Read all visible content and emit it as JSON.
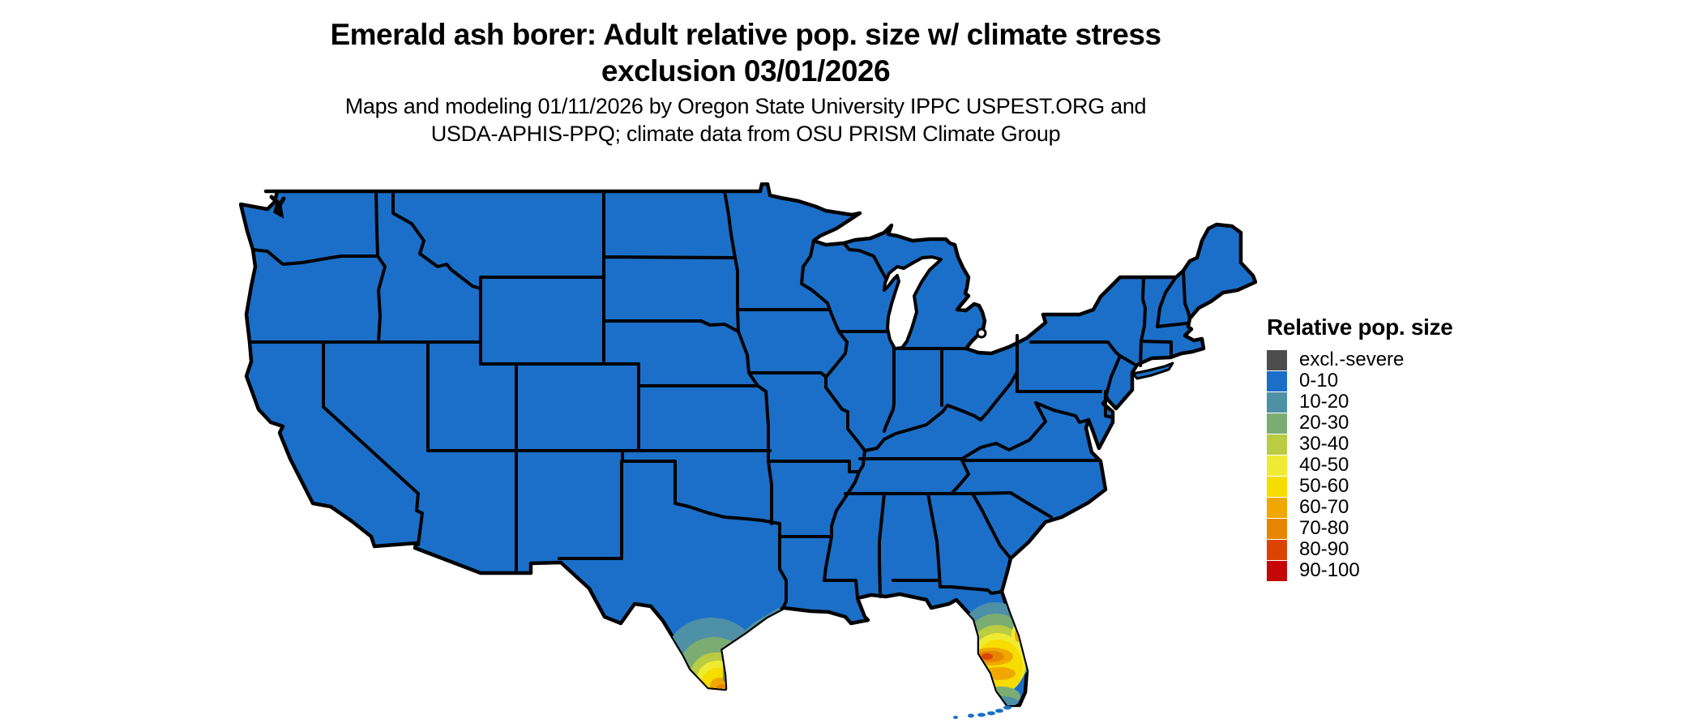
{
  "title": {
    "line1": "Emerald ash borer: Adult relative pop. size w/ climate stress",
    "line2": "exclusion 03/01/2026"
  },
  "subtitle": {
    "line1": "Maps and modeling 01/11/2026 by Oregon State University IPPC USPEST.ORG and",
    "line2": "USDA-APHIS-PPQ; climate data from OSU PRISM Climate Group"
  },
  "map": {
    "region": "Contiguous United States",
    "base_fill": "#1B6FC8",
    "border_color": "#000000",
    "water_color": "#FFFFFF",
    "hotspots": [
      {
        "location": "southern Texas",
        "max_class": "70-80"
      },
      {
        "location": "central and southern Florida",
        "max_class": "80-90"
      }
    ]
  },
  "legend": {
    "title": "Relative pop. size",
    "entries": [
      {
        "label": "excl.-severe",
        "color": "#4D4D4D"
      },
      {
        "label": "0-10",
        "color": "#1B6FC8"
      },
      {
        "label": "10-20",
        "color": "#4E90A5"
      },
      {
        "label": "20-30",
        "color": "#7BAC72"
      },
      {
        "label": "30-40",
        "color": "#B9CC42"
      },
      {
        "label": "40-50",
        "color": "#EFEB33"
      },
      {
        "label": "50-60",
        "color": "#F7DC00"
      },
      {
        "label": "60-70",
        "color": "#F0A800"
      },
      {
        "label": "70-80",
        "color": "#E88500"
      },
      {
        "label": "80-90",
        "color": "#DC4405"
      },
      {
        "label": "90-100",
        "color": "#C50606"
      }
    ]
  }
}
